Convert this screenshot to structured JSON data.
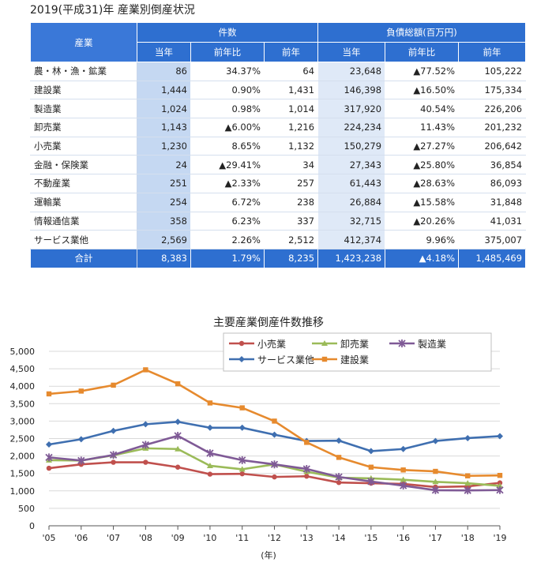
{
  "table": {
    "title": "2019(平成31)年 産業別倒産状況",
    "headers": {
      "industry": "産業",
      "count_group": "件数",
      "debt_group": "負債総額(百万円)",
      "sub": [
        "当年",
        "前年比",
        "前年",
        "当年",
        "前年比",
        "前年"
      ]
    },
    "rows": [
      {
        "industry": "農・林・漁・鉱業",
        "cnt_cur": "86",
        "cnt_yoy": "34.37%",
        "cnt_prev": "64",
        "debt_cur": "23,648",
        "debt_yoy": "▲77.52%",
        "debt_prev": "105,222"
      },
      {
        "industry": "建設業",
        "cnt_cur": "1,444",
        "cnt_yoy": "0.90%",
        "cnt_prev": "1,431",
        "debt_cur": "146,398",
        "debt_yoy": "▲16.50%",
        "debt_prev": "175,334"
      },
      {
        "industry": "製造業",
        "cnt_cur": "1,024",
        "cnt_yoy": "0.98%",
        "cnt_prev": "1,014",
        "debt_cur": "317,920",
        "debt_yoy": "40.54%",
        "debt_prev": "226,206"
      },
      {
        "industry": "卸売業",
        "cnt_cur": "1,143",
        "cnt_yoy": "▲6.00%",
        "cnt_prev": "1,216",
        "debt_cur": "224,234",
        "debt_yoy": "11.43%",
        "debt_prev": "201,232"
      },
      {
        "industry": "小売業",
        "cnt_cur": "1,230",
        "cnt_yoy": "8.65%",
        "cnt_prev": "1,132",
        "debt_cur": "150,279",
        "debt_yoy": "▲27.27%",
        "debt_prev": "206,642"
      },
      {
        "industry": "金融・保険業",
        "cnt_cur": "24",
        "cnt_yoy": "▲29.41%",
        "cnt_prev": "34",
        "debt_cur": "27,343",
        "debt_yoy": "▲25.80%",
        "debt_prev": "36,854"
      },
      {
        "industry": "不動産業",
        "cnt_cur": "251",
        "cnt_yoy": "▲2.33%",
        "cnt_prev": "257",
        "debt_cur": "61,443",
        "debt_yoy": "▲28.63%",
        "debt_prev": "86,093"
      },
      {
        "industry": "運輸業",
        "cnt_cur": "254",
        "cnt_yoy": "6.72%",
        "cnt_prev": "238",
        "debt_cur": "26,884",
        "debt_yoy": "▲15.58%",
        "debt_prev": "31,848"
      },
      {
        "industry": "情報通信業",
        "cnt_cur": "358",
        "cnt_yoy": "6.23%",
        "cnt_prev": "337",
        "debt_cur": "32,715",
        "debt_yoy": "▲20.26%",
        "debt_prev": "41,031"
      },
      {
        "industry": "サービス業他",
        "cnt_cur": "2,569",
        "cnt_yoy": "2.26%",
        "cnt_prev": "2,512",
        "debt_cur": "412,374",
        "debt_yoy": "9.96%",
        "debt_prev": "375,007"
      }
    ],
    "total": {
      "industry": "合計",
      "cnt_cur": "8,383",
      "cnt_yoy": "1.79%",
      "cnt_prev": "8,235",
      "debt_cur": "1,423,238",
      "debt_yoy": "▲4.18%",
      "debt_prev": "1,485,469"
    }
  },
  "chart_data": {
    "type": "line",
    "title": "主要産業倒産件数推移",
    "xlabel": "(年)",
    "ylabel": "",
    "x": [
      "'05",
      "'06",
      "'07",
      "'08",
      "'09",
      "'10",
      "'11",
      "'12",
      "'13",
      "'14",
      "'15",
      "'16",
      "'17",
      "'18",
      "'19"
    ],
    "ylim": [
      0,
      5000
    ],
    "yticks": [
      0,
      500,
      1000,
      1500,
      2000,
      2500,
      3000,
      3500,
      4000,
      4500,
      5000
    ],
    "ytick_labels": [
      "0",
      "500",
      "1,000",
      "1,500",
      "2,000",
      "2,500",
      "3,000",
      "3,500",
      "4,000",
      "4,500",
      "5,000"
    ],
    "grid": "horizontal",
    "legend": "top-center",
    "series": [
      {
        "name": "小売業",
        "color": "#c0504d",
        "marker": "circle",
        "values": [
          1650,
          1760,
          1820,
          1820,
          1680,
          1480,
          1490,
          1400,
          1420,
          1240,
          1220,
          1200,
          1110,
          1130,
          1230
        ]
      },
      {
        "name": "卸売業",
        "color": "#9bbb59",
        "marker": "triangle",
        "values": [
          1880,
          1870,
          2020,
          2220,
          2200,
          1720,
          1620,
          1760,
          1550,
          1380,
          1360,
          1320,
          1260,
          1220,
          1143
        ]
      },
      {
        "name": "製造業",
        "color": "#7f5a96",
        "marker": "star",
        "values": [
          1960,
          1870,
          2030,
          2320,
          2580,
          2080,
          1880,
          1760,
          1630,
          1400,
          1270,
          1150,
          1020,
          1014,
          1024
        ]
      },
      {
        "name": "サービス業他",
        "color": "#3f6fb0",
        "marker": "diamond",
        "values": [
          2330,
          2480,
          2720,
          2910,
          2980,
          2810,
          2810,
          2610,
          2430,
          2440,
          2140,
          2200,
          2430,
          2512,
          2569
        ]
      },
      {
        "name": "建設業",
        "color": "#e68a2e",
        "marker": "square",
        "values": [
          3780,
          3860,
          4030,
          4470,
          4070,
          3520,
          3380,
          3000,
          2390,
          1960,
          1680,
          1600,
          1560,
          1431,
          1444
        ]
      }
    ]
  }
}
